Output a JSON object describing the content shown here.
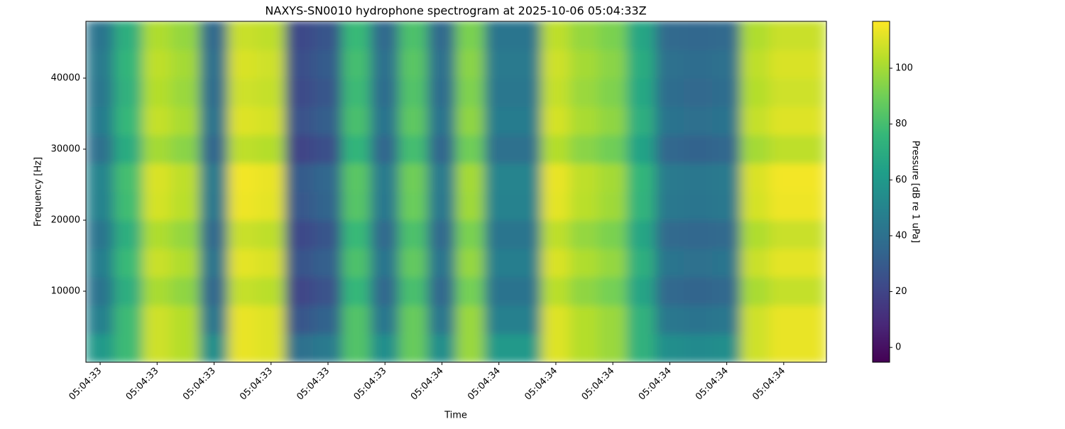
{
  "chart_data": {
    "type": "heatmap",
    "title": "NAXYS-SN0010 hydrophone spectrogram at 2025-10-06 05:04:33Z",
    "x_label": "Time",
    "y_label": "Frequency [Hz]",
    "colorbar_label": "Pressure [dB re 1 uPa]",
    "colormap": [
      "#440154",
      "#482878",
      "#3e4989",
      "#31688e",
      "#26828e",
      "#1f9e89",
      "#35b779",
      "#6ece58",
      "#b5de2b",
      "#fde725"
    ],
    "x": [
      33.4,
      33.45,
      33.5,
      33.55,
      33.6,
      33.65,
      33.7,
      33.75,
      33.8,
      33.85,
      33.9,
      33.95,
      34.0,
      34.05,
      34.1,
      34.15,
      34.2,
      34.25,
      34.3,
      34.35,
      34.4,
      34.45,
      34.5,
      34.55,
      34.6,
      34.65
    ],
    "y": [
      2000,
      6000,
      10000,
      14000,
      18000,
      22000,
      26000,
      30000,
      34000,
      38000,
      42000,
      46000
    ],
    "z": [
      [
        60,
        78,
        108,
        103,
        55,
        113,
        111,
        40,
        45,
        83,
        55,
        88,
        55,
        98,
        60,
        60,
        111,
        103,
        98,
        73,
        55,
        53,
        55,
        108,
        113,
        113
      ],
      [
        48,
        78,
        108,
        103,
        43,
        113,
        111,
        28,
        33,
        83,
        43,
        88,
        43,
        98,
        48,
        48,
        111,
        103,
        98,
        73,
        43,
        41,
        43,
        108,
        113,
        113
      ],
      [
        41,
        71,
        101,
        96,
        36,
        106,
        104,
        21,
        26,
        76,
        36,
        81,
        36,
        91,
        41,
        41,
        104,
        96,
        91,
        66,
        36,
        34,
        36,
        101,
        106,
        106
      ],
      [
        47,
        77,
        107,
        102,
        42,
        112,
        110,
        27,
        32,
        82,
        42,
        87,
        42,
        97,
        47,
        47,
        110,
        102,
        97,
        72,
        42,
        40,
        42,
        107,
        112,
        112
      ],
      [
        42,
        72,
        102,
        97,
        37,
        107,
        105,
        22,
        27,
        77,
        37,
        82,
        37,
        92,
        42,
        42,
        105,
        97,
        92,
        67,
        37,
        35,
        37,
        102,
        107,
        107
      ],
      [
        49,
        79,
        109,
        104,
        44,
        114,
        112,
        29,
        34,
        84,
        44,
        89,
        44,
        99,
        49,
        49,
        112,
        104,
        99,
        74,
        44,
        42,
        44,
        109,
        114,
        114
      ],
      [
        50,
        80,
        110,
        105,
        45,
        115,
        113,
        30,
        35,
        85,
        45,
        90,
        45,
        100,
        50,
        50,
        113,
        105,
        100,
        75,
        45,
        43,
        45,
        110,
        115,
        115
      ],
      [
        40,
        70,
        100,
        95,
        35,
        105,
        103,
        20,
        25,
        75,
        35,
        80,
        35,
        90,
        40,
        40,
        103,
        95,
        90,
        65,
        35,
        33,
        35,
        100,
        105,
        105
      ],
      [
        46,
        76,
        106,
        101,
        41,
        111,
        109,
        26,
        31,
        81,
        41,
        86,
        41,
        96,
        46,
        46,
        109,
        101,
        96,
        71,
        41,
        39,
        41,
        106,
        111,
        111
      ],
      [
        43,
        73,
        103,
        98,
        38,
        108,
        106,
        23,
        28,
        78,
        38,
        83,
        38,
        93,
        43,
        43,
        106,
        98,
        93,
        68,
        38,
        36,
        38,
        103,
        108,
        108
      ],
      [
        45,
        75,
        105,
        100,
        40,
        110,
        108,
        25,
        30,
        80,
        40,
        85,
        40,
        95,
        45,
        45,
        108,
        100,
        95,
        70,
        40,
        38,
        40,
        105,
        110,
        110
      ],
      [
        42,
        72,
        102,
        97,
        37,
        107,
        105,
        22,
        27,
        77,
        37,
        82,
        37,
        92,
        42,
        42,
        105,
        97,
        92,
        67,
        37,
        35,
        37,
        102,
        107,
        107
      ]
    ],
    "xlim": [
      33.375,
      34.675
    ],
    "ylim": [
      0,
      48000
    ],
    "clim": [
      -5.3,
      116.8
    ],
    "xticks": [
      {
        "value": 33.4,
        "label": "05:04:33"
      },
      {
        "value": 33.5,
        "label": "05:04:33"
      },
      {
        "value": 33.6,
        "label": "05:04:33"
      },
      {
        "value": 33.7,
        "label": "05:04:33"
      },
      {
        "value": 33.8,
        "label": "05:04:33"
      },
      {
        "value": 33.9,
        "label": "05:04:33"
      },
      {
        "value": 34.0,
        "label": "05:04:34"
      },
      {
        "value": 34.1,
        "label": "05:04:34"
      },
      {
        "value": 34.2,
        "label": "05:04:34"
      },
      {
        "value": 34.3,
        "label": "05:04:34"
      },
      {
        "value": 34.4,
        "label": "05:04:34"
      },
      {
        "value": 34.5,
        "label": "05:04:34"
      },
      {
        "value": 34.6,
        "label": "05:04:34"
      }
    ],
    "yticks": [
      10000,
      20000,
      30000,
      40000
    ],
    "cticks": [
      0,
      20,
      40,
      60,
      80,
      100
    ]
  }
}
